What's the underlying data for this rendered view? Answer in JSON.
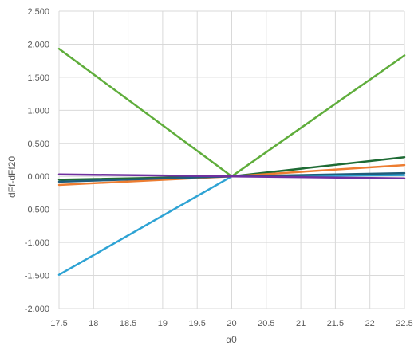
{
  "chart_data": {
    "type": "line",
    "title": "",
    "xlabel": "α0",
    "ylabel": "dFf-dFf20",
    "xlim": [
      17.5,
      22.5
    ],
    "ylim": [
      -2.0,
      2.5
    ],
    "grid": true,
    "legend": "none",
    "x_ticks": [
      "17.5",
      "18",
      "18.5",
      "19",
      "19.5",
      "20",
      "20.5",
      "21",
      "21.5",
      "22",
      "22.5"
    ],
    "y_ticks": [
      "2.500",
      "2.000",
      "1.500",
      "1.000",
      "0.500",
      "0.000",
      "-0.500",
      "-1.000",
      "-1.500",
      "-2.000"
    ],
    "x": [
      17.5,
      20,
      22.5
    ],
    "series": [
      {
        "color": "#5fad3b",
        "values": [
          1.93,
          0.0,
          1.83
        ]
      },
      {
        "color": "#2ea3d4",
        "values": [
          -1.49,
          0.0,
          0.02
        ]
      },
      {
        "color": "#1e6b34",
        "values": [
          -0.05,
          0.0,
          0.29
        ]
      },
      {
        "color": "#ed7d31",
        "values": [
          -0.13,
          0.0,
          0.17
        ]
      },
      {
        "color": "#1f5c7a",
        "values": [
          -0.08,
          0.0,
          0.05
        ]
      },
      {
        "color": "#7030a0",
        "values": [
          0.03,
          0.0,
          -0.03
        ]
      }
    ]
  }
}
